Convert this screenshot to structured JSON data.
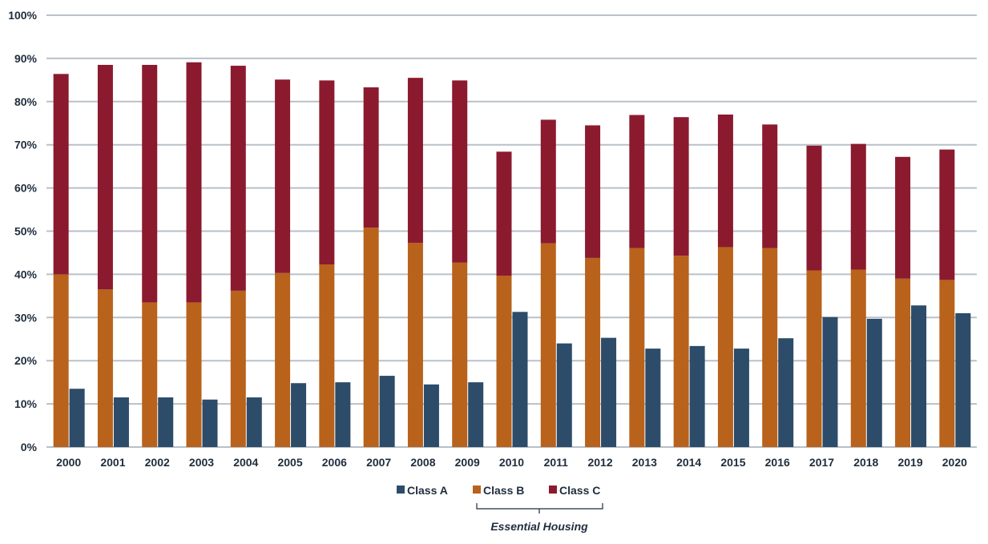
{
  "chart_data": {
    "type": "bar",
    "categories": [
      "2000",
      "2001",
      "2002",
      "2003",
      "2004",
      "2005",
      "2006",
      "2007",
      "2008",
      "2009",
      "2010",
      "2011",
      "2012",
      "2013",
      "2014",
      "2015",
      "2016",
      "2017",
      "2018",
      "2019",
      "2020"
    ],
    "stacked_group": [
      "Class B",
      "Class C"
    ],
    "series": [
      {
        "name": "Class A",
        "color": "#2c4c69",
        "values": [
          13.5,
          11.5,
          11.5,
          11,
          11.5,
          14.8,
          15,
          16.5,
          14.5,
          15,
          31.3,
          24,
          25.3,
          22.8,
          23.4,
          22.8,
          25.2,
          30.1,
          29.7,
          32.8,
          31
        ]
      },
      {
        "name": "Class B",
        "color": "#b8621b",
        "values": [
          40,
          36.5,
          33.5,
          33.5,
          36.2,
          40.3,
          42.3,
          50.8,
          47.3,
          42.7,
          39.7,
          47.2,
          43.8,
          46.1,
          44.3,
          46.3,
          46.1,
          40.9,
          41.1,
          39,
          38.7
        ]
      },
      {
        "name": "Class C",
        "color": "#8b1a2f",
        "values": [
          46.4,
          52,
          55,
          55.6,
          52.1,
          44.8,
          42.6,
          32.5,
          38.2,
          42.2,
          28.7,
          28.6,
          30.7,
          30.8,
          32.1,
          30.7,
          28.6,
          28.9,
          29.1,
          28.2,
          30.2
        ]
      }
    ],
    "y_tick_labels": [
      "0%",
      "10%",
      "20%",
      "30%",
      "40%",
      "50%",
      "60%",
      "70%",
      "80%",
      "90%",
      "100%"
    ],
    "ylim": [
      0,
      100
    ],
    "grid": true,
    "legend_position": "bottom",
    "legend_bracket_label": "Essential Housing",
    "title": "",
    "xlabel": "",
    "ylabel": ""
  }
}
